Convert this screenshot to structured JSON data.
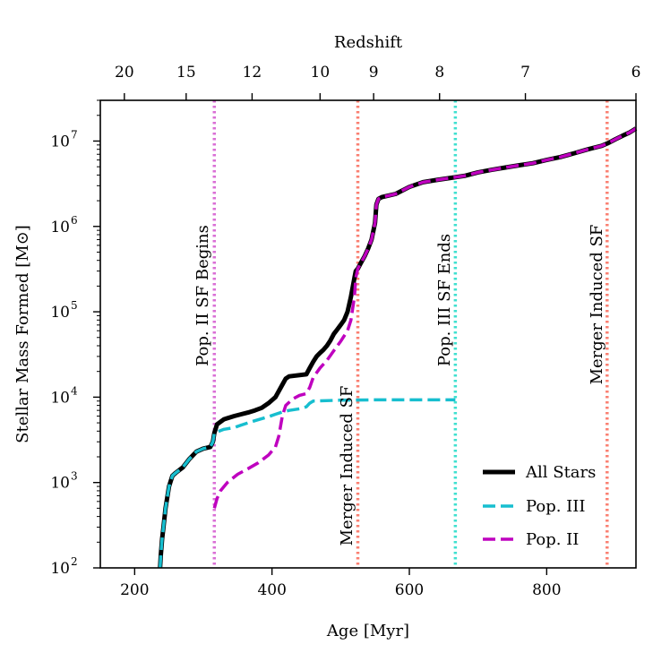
{
  "chart_data": {
    "type": "line",
    "xlabel": "Age [Myr]",
    "ylabel": "Stellar Mass Formed [M⊙]",
    "top_axis_label": "Redshift",
    "xlim": [
      150,
      930
    ],
    "ylim": [
      100,
      30000000
    ],
    "yscale": "log",
    "x_ticks": [
      200,
      400,
      600,
      800
    ],
    "y_ticks": [
      {
        "value": 100,
        "label": "10^2"
      },
      {
        "value": 1000,
        "label": "10^3"
      },
      {
        "value": 10000,
        "label": "10^4"
      },
      {
        "value": 100000,
        "label": "10^5"
      },
      {
        "value": 1000000,
        "label": "10^6"
      },
      {
        "value": 10000000,
        "label": "10^7"
      }
    ],
    "redshift_ticks": [
      {
        "label": "20",
        "age": 185
      },
      {
        "label": "15",
        "age": 275
      },
      {
        "label": "12",
        "age": 371
      },
      {
        "label": "10",
        "age": 470
      },
      {
        "label": "9",
        "age": 548
      },
      {
        "label": "8",
        "age": 644
      },
      {
        "label": "7",
        "age": 769
      },
      {
        "label": "6",
        "age": 930
      }
    ],
    "legend_position": "lower-right",
    "series": [
      {
        "name": "All Stars",
        "color": "#000000",
        "style": "solid",
        "x": [
          237,
          238,
          240,
          242,
          245,
          250,
          255,
          260,
          270,
          280,
          290,
          300,
          310,
          314,
          316,
          320,
          330,
          345,
          355,
          365,
          375,
          385,
          395,
          405,
          415,
          420,
          425,
          450,
          455,
          460,
          465,
          470,
          475,
          480,
          485,
          490,
          495,
          500,
          505,
          510,
          515,
          520,
          522,
          525,
          530,
          535,
          540,
          545,
          550,
          552,
          555,
          560,
          580,
          600,
          620,
          640,
          660,
          680,
          700,
          720,
          740,
          760,
          780,
          800,
          820,
          840,
          860,
          880,
          890,
          900,
          910,
          920,
          930
        ],
        "y": [
          100,
          140,
          220,
          300,
          500,
          900,
          1200,
          1300,
          1500,
          1900,
          2300,
          2500,
          2600,
          3000,
          3800,
          4800,
          5500,
          6000,
          6300,
          6600,
          7000,
          7500,
          8500,
          10000,
          14000,
          16500,
          17500,
          18500,
          22000,
          26000,
          30000,
          33000,
          36000,
          40000,
          46000,
          55000,
          62000,
          70000,
          80000,
          100000,
          150000,
          250000,
          300000,
          320000,
          380000,
          450000,
          550000,
          700000,
          1100000,
          1800000,
          2100000,
          2200000,
          2400000,
          2900000,
          3300000,
          3500000,
          3700000,
          3900000,
          4300000,
          4600000,
          4900000,
          5200000,
          5500000,
          6000000,
          6500000,
          7200000,
          8000000,
          8800000,
          9500000,
          10500000,
          11500000,
          12500000,
          14000000
        ]
      },
      {
        "name": "Pop. III",
        "color": "#17becf",
        "style": "dashed",
        "x": [
          237,
          238,
          240,
          242,
          245,
          250,
          255,
          260,
          270,
          280,
          290,
          300,
          310,
          314,
          316,
          330,
          345,
          355,
          365,
          375,
          385,
          395,
          405,
          415,
          425,
          440,
          450,
          455,
          460,
          500,
          550,
          600,
          640,
          667
        ],
        "y": [
          100,
          140,
          220,
          300,
          500,
          900,
          1200,
          1300,
          1500,
          1900,
          2300,
          2500,
          2600,
          3000,
          3800,
          4200,
          4400,
          4700,
          5000,
          5300,
          5600,
          5900,
          6300,
          6700,
          7000,
          7300,
          7700,
          8500,
          9000,
          9200,
          9300,
          9300,
          9300,
          9300
        ]
      },
      {
        "name": "Pop. II",
        "color": "#bf00bf",
        "style": "dashed",
        "x": [
          316,
          320,
          325,
          335,
          350,
          365,
          380,
          395,
          405,
          410,
          415,
          420,
          430,
          440,
          450,
          455,
          460,
          470,
          480,
          490,
          500,
          510,
          515,
          520,
          522,
          525,
          530,
          535,
          540,
          545,
          550,
          552,
          555,
          560,
          580,
          600,
          620,
          640,
          660,
          680,
          700,
          720,
          740,
          760,
          780,
          800,
          820,
          840,
          860,
          880,
          890,
          900,
          910,
          920,
          930
        ],
        "y": [
          500,
          650,
          800,
          1000,
          1250,
          1450,
          1700,
          2100,
          2600,
          3500,
          6000,
          8000,
          9500,
          10500,
          11000,
          13000,
          17000,
          22000,
          27000,
          35000,
          45000,
          60000,
          80000,
          150000,
          250000,
          320000,
          380000,
          450000,
          550000,
          700000,
          1100000,
          1800000,
          2100000,
          2200000,
          2400000,
          2900000,
          3300000,
          3500000,
          3700000,
          3900000,
          4300000,
          4600000,
          4900000,
          5200000,
          5500000,
          6000000,
          6500000,
          7200000,
          8000000,
          8800000,
          9500000,
          10500000,
          11500000,
          12500000,
          14000000
        ]
      }
    ],
    "vertical_lines": [
      {
        "x": 316,
        "color": "#da70d6",
        "label": "Pop. II SF Begins"
      },
      {
        "x": 667,
        "color": "#40e0d0",
        "label": "Pop. III SF Ends"
      },
      {
        "x": 525,
        "color": "#fa8072",
        "label": "Merger Induced SF"
      },
      {
        "x": 888,
        "color": "#fa8072",
        "label": "Merger Induced SF"
      }
    ]
  }
}
